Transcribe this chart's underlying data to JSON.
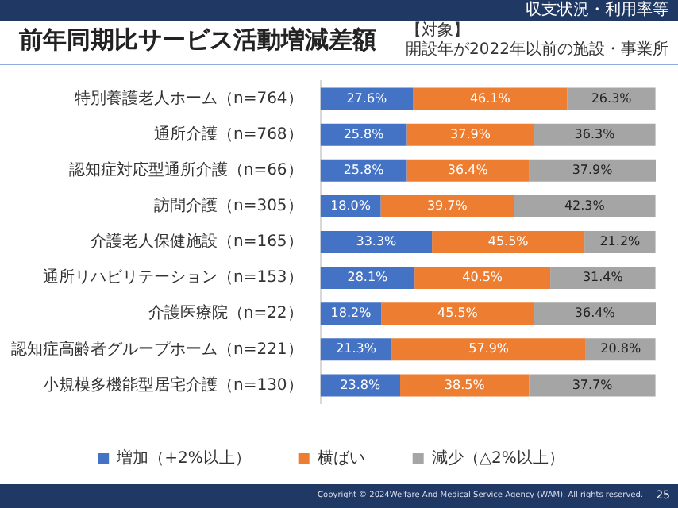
{
  "chart_data": {
    "type": "bar",
    "orientation": "horizontal",
    "stacked": true,
    "title": "前年同期比サービス活動増減差額",
    "subtitle": "【対象】",
    "categories": [
      "特別養護老人ホーム（n=764）",
      "通所介護（n=768）",
      "認知症対応型通所介護（n=66）",
      "訪問介護（n=305）",
      "介護老人保健施設（n=165）",
      "通所リハビリテーション（n=153）",
      "介護医療院（n=22）",
      "認知症高齢者グループホーム（n=221）",
      "小規模多機能型居宅介護（n=130）"
    ],
    "series": [
      {
        "name": "増加（+2%以上）",
        "color": "#4472c4",
        "values": [
          27.6,
          25.8,
          25.8,
          18.0,
          33.3,
          28.1,
          18.2,
          21.3,
          23.8
        ],
        "value_labels": [
          "27.6%",
          "25.8%",
          "25.8%",
          "18.0%",
          "33.3%",
          "28.1%",
          "18.2%",
          "21.3%",
          "23.8%"
        ]
      },
      {
        "name": "横ばい",
        "color": "#ed7d31",
        "values": [
          46.1,
          37.9,
          36.4,
          39.7,
          45.5,
          40.5,
          45.5,
          57.9,
          38.5
        ],
        "value_labels": [
          "46.1%",
          "37.9%",
          "36.4%",
          "39.7%",
          "45.5%",
          "40.5%",
          "45.5%",
          "57.9%",
          "38.5%"
        ]
      },
      {
        "name": "減少（△2%以上）",
        "color": "#a5a5a5",
        "values": [
          26.3,
          36.3,
          37.9,
          42.3,
          21.2,
          31.4,
          36.4,
          20.8,
          37.7
        ],
        "value_labels": [
          "26.3%",
          "36.3%",
          "37.9%",
          "42.3%",
          "21.2%",
          "31.4%",
          "36.4%",
          "20.8%",
          "37.7%"
        ]
      }
    ],
    "legend": "bottom",
    "annotations": [
      "収支状況・利用率等",
      "開設年が2022年以前の施設・事業所",
      "Copyright © 2024Welfare And Medical Service Agency (WAM). All rights reserved.",
      "25"
    ]
  }
}
